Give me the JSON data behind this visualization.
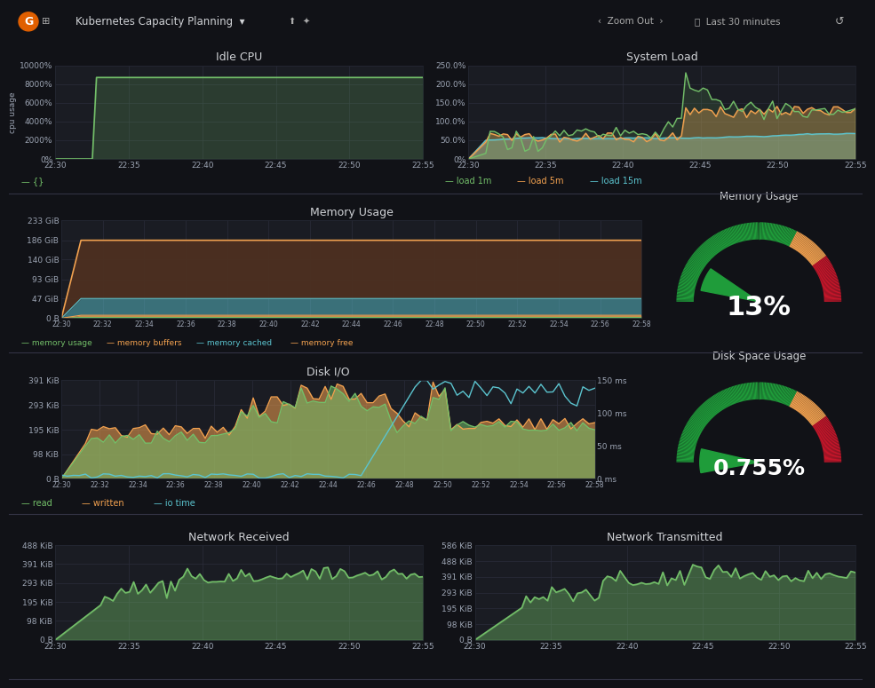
{
  "bg_color": "#111217",
  "panel_bg": "#161719",
  "plot_bg": "#1a1c23",
  "grid_color": "#2a2d3a",
  "text_color": "#9da5b4",
  "title_color": "#d0d2d6",
  "border_color": "#222530",
  "header": {
    "title": "Kubernetes Capacity Planning",
    "bg": "#161719",
    "text_color": "#d0d2d6"
  },
  "idle_cpu": {
    "title": "Idle CPU",
    "ylabel": "cpu usage",
    "ytick_labels": [
      "0%",
      "2000%",
      "4000%",
      "6000%",
      "8000%",
      "10000%"
    ],
    "ytick_vals": [
      0,
      2000,
      4000,
      6000,
      8000,
      10000
    ],
    "xtick_labels": [
      "22:30",
      "22:35",
      "22:40",
      "22:45",
      "22:50",
      "22:55"
    ],
    "line_color": "#73bf69",
    "fill_color": "#73bf69",
    "line_value": 8700,
    "legend": "— {}"
  },
  "system_load": {
    "title": "System Load",
    "ytick_labels": [
      "0%",
      "50.0%",
      "100.0%",
      "150.0%",
      "200.0%",
      "250.0%"
    ],
    "ytick_vals": [
      0,
      50,
      100,
      150,
      200,
      250
    ],
    "xtick_labels": [
      "22:30",
      "22:35",
      "22:40",
      "22:45",
      "22:50",
      "22:55"
    ],
    "load1m_color": "#73bf69",
    "load5m_color": "#f2a14f",
    "load15m_color": "#5bc4cf",
    "legend": [
      "load 1m",
      "load 5m",
      "load 15m"
    ]
  },
  "memory_usage": {
    "title": "Memory Usage",
    "ytick_labels": [
      "0 B",
      "47 GiB",
      "93 GiB",
      "140 GiB",
      "186 GiB",
      "233 GiB"
    ],
    "ytick_vals": [
      0,
      47,
      93,
      140,
      186,
      233
    ],
    "xtick_labels": [
      "22:30",
      "22:32",
      "22:34",
      "22:36",
      "22:38",
      "22:40",
      "22:42",
      "22:44",
      "22:46",
      "22:48",
      "22:50",
      "22:52",
      "22:54",
      "22:56",
      "22:58"
    ],
    "usage_color": "#73bf69",
    "buffers_color": "#f2a14f",
    "cached_color": "#5bc4cf",
    "free_color": "#f2a14f",
    "free_line_color": "#f2a14f",
    "legend": [
      "memory usage",
      "memory buffers",
      "memory cached",
      "memory free"
    ]
  },
  "memory_gauge": {
    "title": "Memory Usage",
    "value_pct": 13,
    "value_str": "13%",
    "arc_green": "#1f9c3a",
    "arc_orange": "#f2a14f",
    "arc_red": "#c4162a",
    "needle_color": "#1f9c3a",
    "text_color": "#ffffff"
  },
  "disk_io": {
    "title": "Disk I/O",
    "ytick_labels_left": [
      "0 B",
      "98 KiB",
      "195 KiB",
      "293 KiB",
      "391 KiB"
    ],
    "ytick_vals_left": [
      0,
      98,
      195,
      293,
      391
    ],
    "ytick_labels_right": [
      "0 ms",
      "50 ms",
      "100 ms",
      "150 ms"
    ],
    "ytick_vals_right": [
      0,
      50,
      100,
      150
    ],
    "xtick_labels": [
      "22:30",
      "22:32",
      "22:34",
      "22:36",
      "22:38",
      "22:40",
      "22:42",
      "22:44",
      "22:46",
      "22:48",
      "22:50",
      "22:52",
      "22:54",
      "22:56",
      "22:58"
    ],
    "read_color": "#73bf69",
    "write_color": "#f2a14f",
    "iotime_color": "#5bc4cf",
    "legend": [
      "read",
      "written",
      "io time"
    ]
  },
  "disk_space": {
    "title": "Disk Space Usage",
    "value_pct": 0.755,
    "value_str": "0.755%",
    "arc_green": "#1f9c3a",
    "arc_orange": "#f2a14f",
    "arc_red": "#c4162a",
    "needle_color": "#1f9c3a",
    "text_color": "#ffffff"
  },
  "net_rx": {
    "title": "Network Received",
    "ytick_labels": [
      "0 B",
      "98 KiB",
      "195 KiB",
      "293 KiB",
      "391 KiB",
      "488 KiB"
    ],
    "ytick_vals": [
      0,
      98,
      195,
      293,
      391,
      488
    ],
    "xtick_labels": [
      "22:30",
      "22:35",
      "22:40",
      "22:45",
      "22:50",
      "22:55"
    ],
    "line_color": "#73bf69"
  },
  "net_tx": {
    "title": "Network Transmitted",
    "ytick_labels": [
      "0 B",
      "98 KiB",
      "195 KiB",
      "293 KiB",
      "391 KiB",
      "488 KiB",
      "586 KiB"
    ],
    "ytick_vals": [
      0,
      98,
      195,
      293,
      391,
      488,
      586
    ],
    "xtick_labels": [
      "22:30",
      "22:35",
      "22:40",
      "22:45",
      "22:50",
      "22:55"
    ],
    "line_color": "#73bf69"
  }
}
